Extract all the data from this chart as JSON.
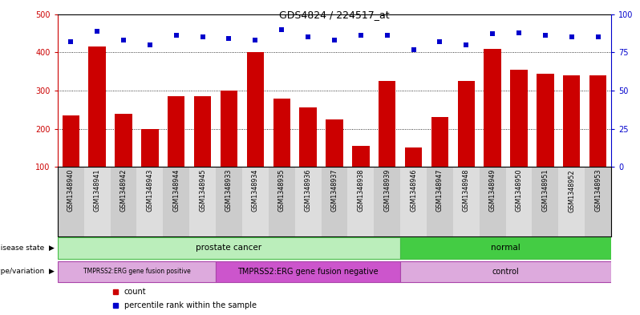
{
  "title": "GDS4824 / 224517_at",
  "samples": [
    "GSM1348940",
    "GSM1348941",
    "GSM1348942",
    "GSM1348943",
    "GSM1348944",
    "GSM1348945",
    "GSM1348933",
    "GSM1348934",
    "GSM1348935",
    "GSM1348936",
    "GSM1348937",
    "GSM1348938",
    "GSM1348939",
    "GSM1348946",
    "GSM1348947",
    "GSM1348948",
    "GSM1348949",
    "GSM1348950",
    "GSM1348951",
    "GSM1348952",
    "GSM1348953"
  ],
  "bar_values": [
    235,
    415,
    240,
    200,
    285,
    285,
    300,
    400,
    280,
    255,
    225,
    155,
    325,
    150,
    230,
    325,
    410,
    355,
    345,
    340,
    340
  ],
  "scatter_values": [
    82,
    89,
    83,
    80,
    86,
    85,
    84,
    83,
    90,
    85,
    83,
    86,
    86,
    77,
    82,
    80,
    87,
    88,
    86,
    85,
    85
  ],
  "ylim_left": [
    100,
    500
  ],
  "ylim_right": [
    0,
    100
  ],
  "left_ticks": [
    100,
    200,
    300,
    400,
    500
  ],
  "right_ticks": [
    0,
    25,
    50,
    75,
    100
  ],
  "grid_values": [
    200,
    300,
    400
  ],
  "bar_color": "#cc0000",
  "scatter_color": "#0000cc",
  "background_color": "#ffffff",
  "xtick_bg_color": "#cccccc",
  "disease_state_groups": [
    {
      "label": "prostate cancer",
      "start": 0,
      "end": 13,
      "color": "#bbeebb",
      "border": "#44bb44"
    },
    {
      "label": "normal",
      "start": 13,
      "end": 21,
      "color": "#44cc44",
      "border": "#44bb44"
    }
  ],
  "genotype_groups": [
    {
      "label": "TMPRSS2:ERG gene fusion positive",
      "start": 0,
      "end": 6,
      "color": "#ddaadd",
      "border": "#aa44aa",
      "fontsize": 5.5
    },
    {
      "label": "TMPRSS2:ERG gene fusion negative",
      "start": 6,
      "end": 13,
      "color": "#cc55cc",
      "border": "#aa44aa",
      "fontsize": 7
    },
    {
      "label": "control",
      "start": 13,
      "end": 21,
      "color": "#ddaadd",
      "border": "#aa44aa",
      "fontsize": 7
    }
  ],
  "disease_state_label": "disease state",
  "genotype_label": "genotype/variation",
  "legend_items": [
    {
      "label": "count",
      "color": "#cc0000"
    },
    {
      "label": "percentile rank within the sample",
      "color": "#0000cc"
    }
  ],
  "left_axis_color": "#cc0000",
  "right_axis_color": "#0000cc"
}
